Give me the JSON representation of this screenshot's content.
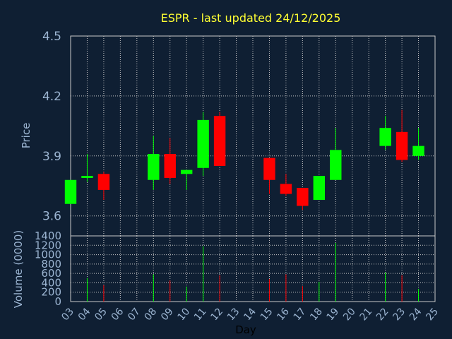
{
  "chart_data": {
    "type": "candlestick",
    "title": "ESPR - last updated 24/12/2025",
    "xlabel": "Day",
    "price_panel": {
      "ylabel": "Price",
      "ylim": [
        3.5,
        4.5
      ],
      "yticks": [
        "3.6",
        "3.9",
        "4.2",
        "4.5"
      ],
      "grid": true
    },
    "volume_panel": {
      "ylabel": "Volume (0000)",
      "ylim": [
        0,
        1400
      ],
      "yticks": [
        "0",
        "200",
        "400",
        "600",
        "800",
        "1000",
        "1200",
        "1400"
      ],
      "grid": true
    },
    "x_ticks": [
      "03",
      "04",
      "05",
      "06",
      "07",
      "08",
      "09",
      "10",
      "11",
      "12",
      "13",
      "14",
      "15",
      "16",
      "17",
      "18",
      "19",
      "20",
      "21",
      "22",
      "23",
      "24",
      "25"
    ],
    "colors": {
      "up": "#00ff00",
      "down": "#ff0000",
      "grid": "#c8c8c8",
      "background": "#0f1f33",
      "text": "#9bb4d1",
      "title": "#ffff33"
    },
    "candles": [
      {
        "day": "03",
        "open": 3.66,
        "close": 3.78,
        "high": 3.78,
        "low": 3.66,
        "volume": 0
      },
      {
        "day": "04",
        "open": 3.79,
        "close": 3.8,
        "high": 3.91,
        "low": 3.77,
        "volume": 500
      },
      {
        "day": "05",
        "open": 3.81,
        "close": 3.73,
        "high": 3.82,
        "low": 3.68,
        "volume": 350
      },
      {
        "day": "08",
        "open": 3.78,
        "close": 3.91,
        "high": 4.0,
        "low": 3.73,
        "volume": 580
      },
      {
        "day": "09",
        "open": 3.91,
        "close": 3.79,
        "high": 3.99,
        "low": 3.76,
        "volume": 450
      },
      {
        "day": "10",
        "open": 3.81,
        "close": 3.83,
        "high": 3.83,
        "low": 3.73,
        "volume": 320
      },
      {
        "day": "11",
        "open": 3.84,
        "close": 4.08,
        "high": 4.12,
        "low": 3.8,
        "volume": 1180
      },
      {
        "day": "12",
        "open": 4.1,
        "close": 3.85,
        "high": 4.12,
        "low": 3.85,
        "volume": 560
      },
      {
        "day": "15",
        "open": 3.89,
        "close": 3.78,
        "high": 3.89,
        "low": 3.71,
        "volume": 480
      },
      {
        "day": "16",
        "open": 3.76,
        "close": 3.71,
        "high": 3.81,
        "low": 3.7,
        "volume": 580
      },
      {
        "day": "17",
        "open": 3.74,
        "close": 3.65,
        "high": 3.74,
        "low": 3.63,
        "volume": 330
      },
      {
        "day": "18",
        "open": 3.68,
        "close": 3.8,
        "high": 3.8,
        "low": 3.68,
        "volume": 420
      },
      {
        "day": "19",
        "open": 3.78,
        "close": 3.93,
        "high": 4.04,
        "low": 3.78,
        "volume": 1250
      },
      {
        "day": "22",
        "open": 3.95,
        "close": 4.04,
        "high": 4.1,
        "low": 3.93,
        "volume": 620
      },
      {
        "day": "23",
        "open": 4.02,
        "close": 3.88,
        "high": 4.13,
        "low": 3.87,
        "volume": 560
      },
      {
        "day": "24",
        "open": 3.9,
        "close": 3.95,
        "high": 4.04,
        "low": 3.88,
        "volume": 270
      }
    ]
  }
}
